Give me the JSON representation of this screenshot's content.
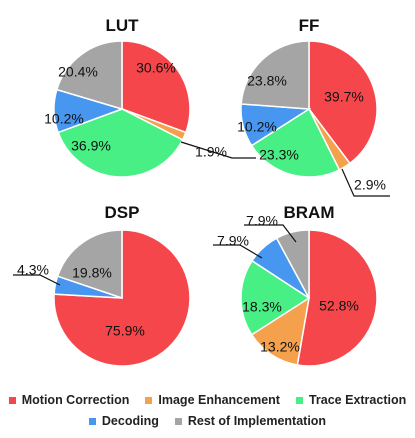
{
  "chart_data": [
    {
      "type": "pie",
      "title": "LUT",
      "slices": [
        {
          "label": "Motion Correction",
          "value": 30.6,
          "text": "30.6%"
        },
        {
          "label": "Image Enhancement",
          "value": 1.9,
          "text": "1.9%"
        },
        {
          "label": "Trace Extraction",
          "value": 36.9,
          "text": "36.9%"
        },
        {
          "label": "Decoding",
          "value": 10.2,
          "text": "10.2%"
        },
        {
          "label": "Rest of Implementation",
          "value": 20.4,
          "text": "20.4%"
        }
      ]
    },
    {
      "type": "pie",
      "title": "FF",
      "slices": [
        {
          "label": "Motion Correction",
          "value": 39.7,
          "text": "39.7%"
        },
        {
          "label": "Image Enhancement",
          "value": 2.9,
          "text": "2.9%"
        },
        {
          "label": "Trace Extraction",
          "value": 23.3,
          "text": "23.3%"
        },
        {
          "label": "Decoding",
          "value": 10.2,
          "text": "10.2%"
        },
        {
          "label": "Rest of Implementation",
          "value": 23.8,
          "text": "23.8%"
        }
      ]
    },
    {
      "type": "pie",
      "title": "DSP",
      "slices": [
        {
          "label": "Motion Correction",
          "value": 75.9,
          "text": "75.9%"
        },
        {
          "label": "Image Enhancement",
          "value": 0,
          "text": ""
        },
        {
          "label": "Trace Extraction",
          "value": 0,
          "text": ""
        },
        {
          "label": "Decoding",
          "value": 4.3,
          "text": "4.3%"
        },
        {
          "label": "Rest of Implementation",
          "value": 19.8,
          "text": "19.8%"
        }
      ]
    },
    {
      "type": "pie",
      "title": "BRAM",
      "slices": [
        {
          "label": "Motion Correction",
          "value": 52.8,
          "text": "52.8%"
        },
        {
          "label": "Image Enhancement",
          "value": 13.2,
          "text": "13.2%"
        },
        {
          "label": "Trace Extraction",
          "value": 18.3,
          "text": "18.3%"
        },
        {
          "label": "Decoding",
          "value": 7.9,
          "text": "7.9%"
        },
        {
          "label": "Rest of Implementation",
          "value": 7.9,
          "text": "7.9%"
        }
      ]
    }
  ],
  "legend": [
    {
      "label": "Motion Correction",
      "color": "#f5474b"
    },
    {
      "label": "Image Enhancement",
      "color": "#f5a04c"
    },
    {
      "label": "Trace Extraction",
      "color": "#47ef85"
    },
    {
      "label": "Decoding",
      "color": "#4796f0"
    },
    {
      "label": "Rest of Implementation",
      "color": "#a5a5a5"
    }
  ],
  "legend_placement": "bottom"
}
